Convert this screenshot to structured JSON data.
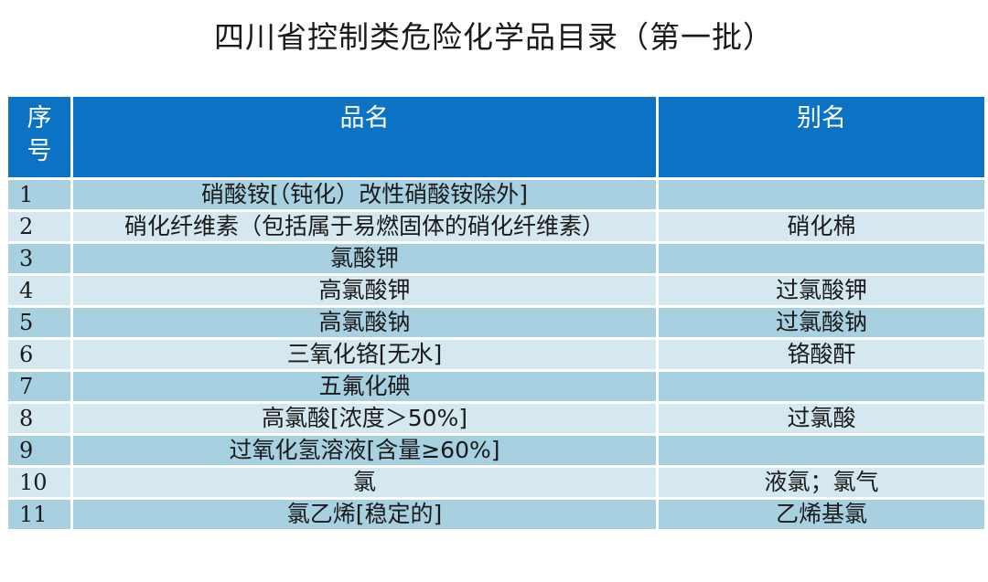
{
  "title": "四川省控制类危险化学品目录（第一批）",
  "table": {
    "headers": {
      "index_line1": "序",
      "index_line2": "号",
      "name": "品名",
      "alias": "别名"
    },
    "rows": [
      {
        "index": "1",
        "name": "硝酸铵[（钝化）改性硝酸铵除外]",
        "alias": ""
      },
      {
        "index": "2",
        "name": "硝化纤维素（包括属于易燃固体的硝化纤维素）",
        "alias": "硝化棉"
      },
      {
        "index": "3",
        "name": "氯酸钾",
        "alias": ""
      },
      {
        "index": "4",
        "name": "高氯酸钾",
        "alias": "过氯酸钾"
      },
      {
        "index": "5",
        "name": "高氯酸钠",
        "alias": "过氯酸钠"
      },
      {
        "index": "6",
        "name": "三氧化铬[无水]",
        "alias": "铬酸酐"
      },
      {
        "index": "7",
        "name": "五氟化碘",
        "alias": ""
      },
      {
        "index": "8",
        "name": "高氯酸[浓度＞50%]",
        "alias": "过氯酸"
      },
      {
        "index": "9",
        "name": "过氧化氢溶液[含量≥60%]",
        "alias": ""
      },
      {
        "index": "10",
        "name": "氯",
        "alias": "液氯；氯气"
      },
      {
        "index": "11",
        "name": "氯乙烯[稳定的]",
        "alias": "乙烯基氯"
      }
    ]
  },
  "colors": {
    "header_bg": "#0b72c4",
    "row_dark": "#a7d0e0",
    "row_light": "#d5e8ef"
  }
}
